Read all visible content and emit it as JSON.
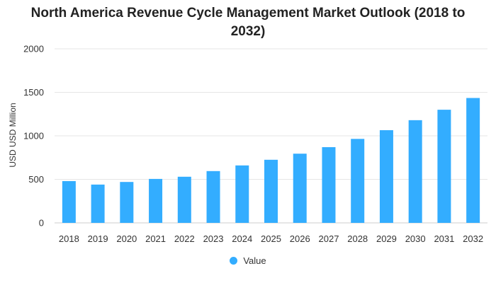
{
  "chart_data": {
    "type": "bar",
    "title": "North America Revenue Cycle Management Market Outlook (2018 to 2032)",
    "title_lines": [
      "North America Revenue Cycle Management Market Outlook (2018 to",
      "2032)"
    ],
    "xlabel": "",
    "ylabel": "USD USD Million",
    "ylim": [
      0,
      2000
    ],
    "yticks": [
      0,
      500,
      1000,
      1500,
      2000
    ],
    "grid": true,
    "legend_position": "bottom-center",
    "categories": [
      "2018",
      "2019",
      "2020",
      "2021",
      "2022",
      "2023",
      "2024",
      "2025",
      "2026",
      "2027",
      "2028",
      "2029",
      "2030",
      "2031",
      "2032"
    ],
    "series": [
      {
        "name": "Value",
        "color": "#33adff",
        "values": [
          480,
          440,
          470,
          505,
          530,
          595,
          660,
          725,
          795,
          870,
          965,
          1065,
          1180,
          1300,
          1435
        ]
      }
    ]
  }
}
